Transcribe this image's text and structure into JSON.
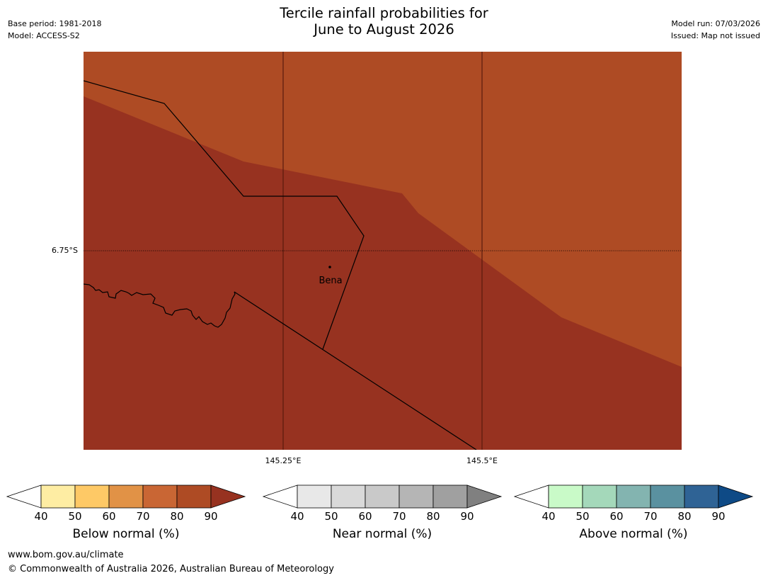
{
  "header": {
    "title_line1": "Tercile rainfall probabilities for",
    "title_line2": "June to August 2026",
    "base_period": "Base period: 1981-2018",
    "model": "Model: ACCESS-S2",
    "model_run": "Model run: 07/03/2026",
    "issued": "Issued: Map not issued"
  },
  "map": {
    "latitude_label": "6.75°S",
    "longitude_labels": [
      "145.25°E",
      "145.5°E"
    ],
    "place": "Bena",
    "colors": {
      "dark_band": "#973220",
      "light_band": "#ae4b24"
    },
    "probability_bands": [
      {
        "category": "below-normal",
        "range": "80-90",
        "color": "#ae4b24"
      },
      {
        "category": "below-normal",
        "range": ">90",
        "color": "#973220"
      }
    ]
  },
  "legends": [
    {
      "title": "Below normal (%)",
      "ticks": [
        "40",
        "50",
        "60",
        "70",
        "80",
        "90"
      ],
      "colors": [
        "#ffffff",
        "#feeda3",
        "#fec966",
        "#e19246",
        "#c96634",
        "#ae4b24",
        "#973220"
      ]
    },
    {
      "title": "Near normal (%)",
      "ticks": [
        "40",
        "50",
        "60",
        "70",
        "80",
        "90"
      ],
      "colors": [
        "#ffffff",
        "#e8e8e8",
        "#d9d9d9",
        "#c9c9c9",
        "#b5b5b5",
        "#a0a0a0",
        "#808080"
      ]
    },
    {
      "title": "Above normal (%)",
      "ticks": [
        "40",
        "50",
        "60",
        "70",
        "80",
        "90"
      ],
      "colors": [
        "#ffffff",
        "#c9fac8",
        "#a4d8ba",
        "#83b4b0",
        "#5a91a0",
        "#2f6395",
        "#0e4a86"
      ]
    }
  ],
  "footer": {
    "url": "www.bom.gov.au/climate",
    "copyright": "© Commonwealth of Australia 2026, Australian Bureau of Meteorology"
  }
}
